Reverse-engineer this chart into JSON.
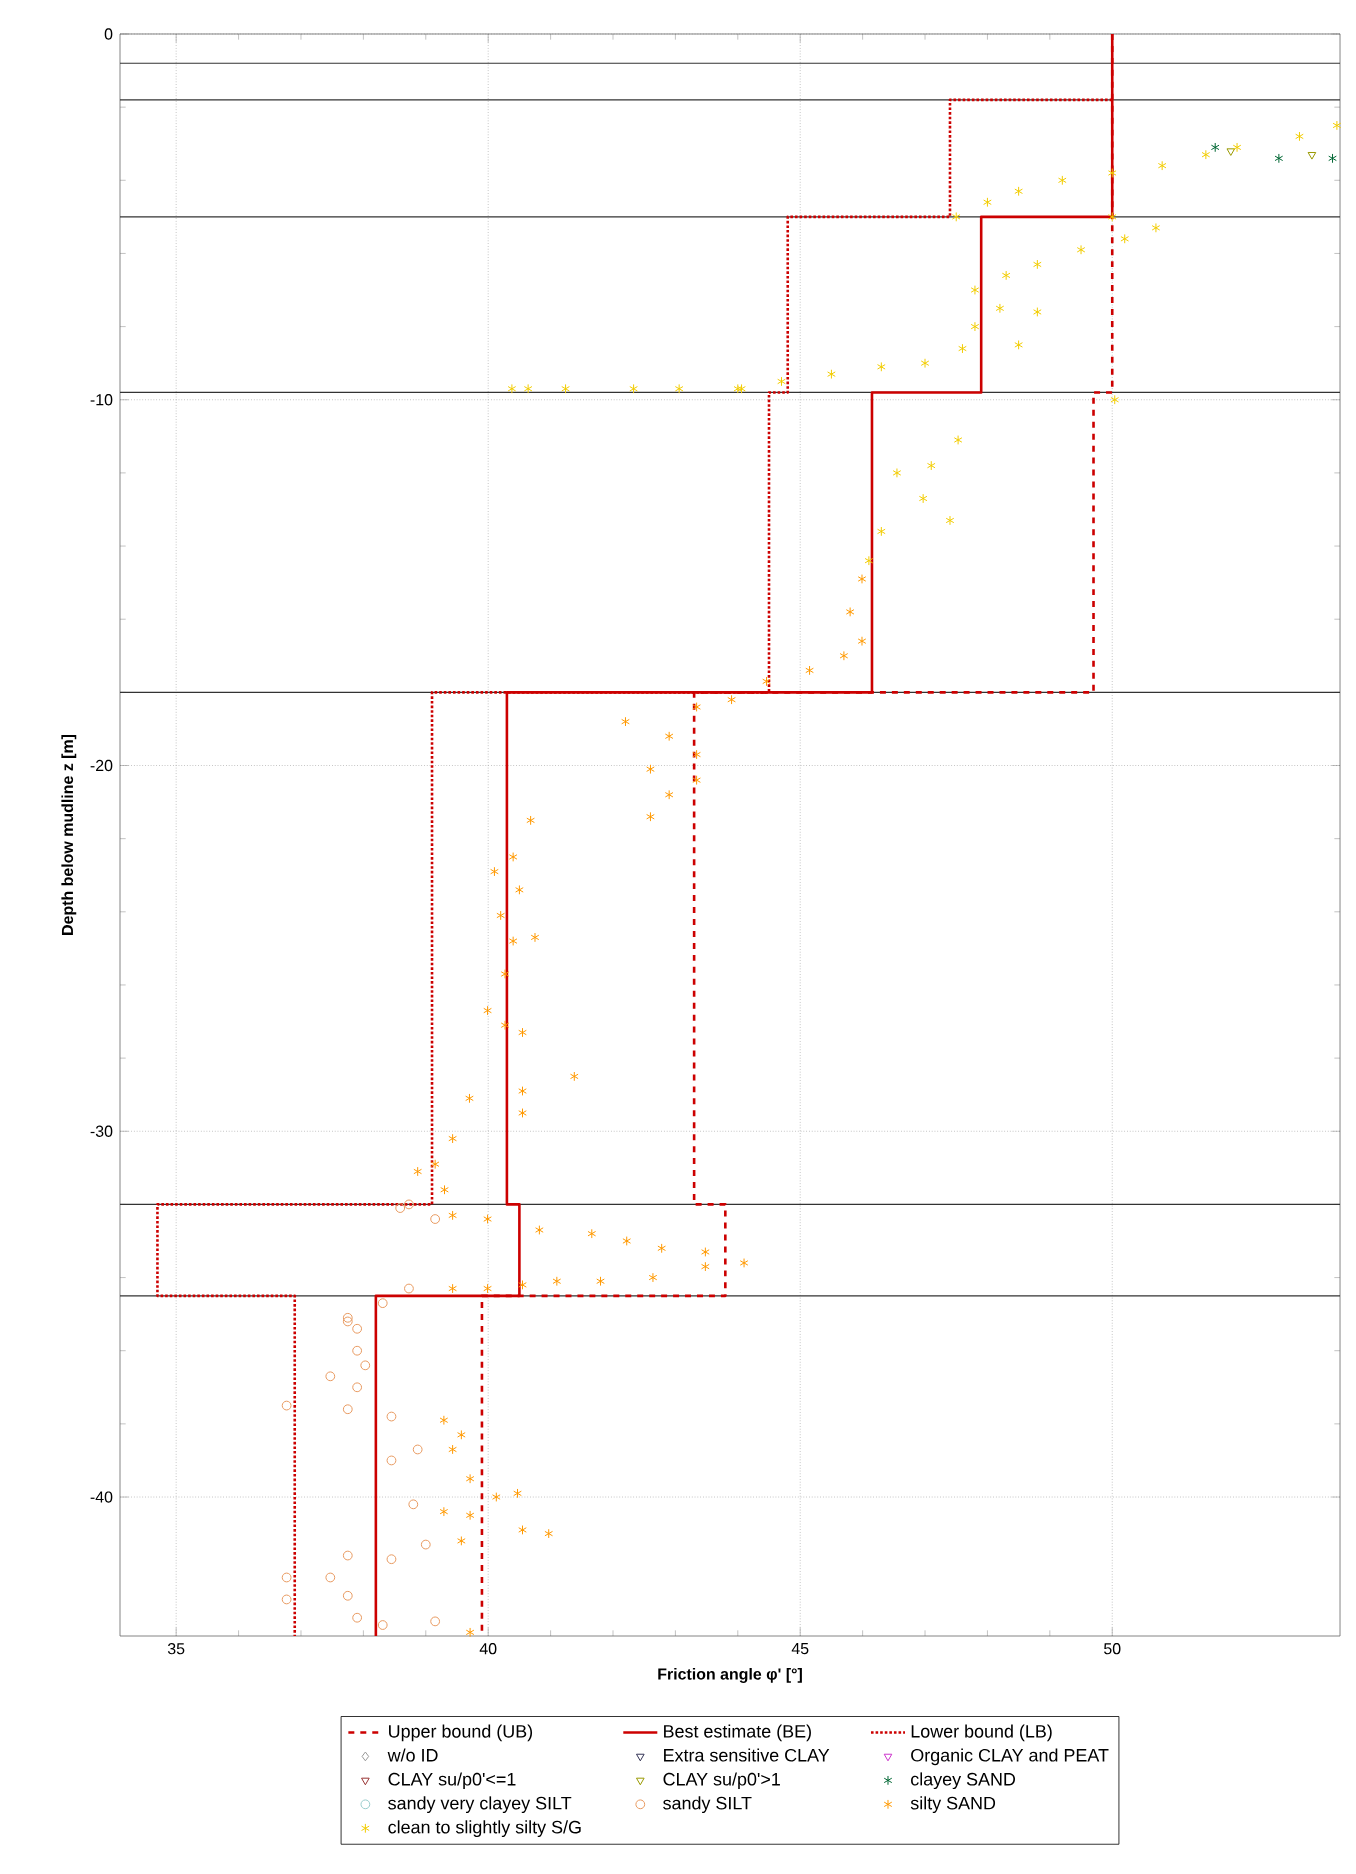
{
  "chart_data": {
    "type": "scatter",
    "xlabel": "**Friction angle φ' [°]**",
    "ylabel": "**Depth below mudline z [m]**",
    "xlim": [
      34.1,
      53.65
    ],
    "ylim": [
      -43.8,
      0
    ],
    "xticks": [
      35,
      40,
      45,
      50
    ],
    "yticks": [
      0,
      -10,
      -20,
      -30,
      -40
    ],
    "grid": true,
    "legend": "bottom",
    "ref_lines": [
      {
        "axis": "y",
        "value": -0.8,
        "color": "#333333"
      },
      {
        "axis": "y",
        "value": -1.8,
        "color": "#333333"
      },
      {
        "axis": "y",
        "value": -5,
        "color": "#333333"
      },
      {
        "axis": "y",
        "value": -9.8,
        "color": "#333333"
      },
      {
        "axis": "y",
        "value": -18,
        "color": "#333333"
      },
      {
        "axis": "y",
        "value": -32,
        "color": "#333333"
      },
      {
        "axis": "y",
        "value": -34.5,
        "color": "#333333"
      }
    ],
    "series": [
      {
        "name": "Upper bound (UB)",
        "type": "line",
        "line_style": "dashed",
        "color": "#cc0000",
        "x": [
          50,
          50,
          49.7,
          49.7,
          43.3,
          43.3,
          43.8,
          43.8,
          39.9,
          39.9
        ],
        "values": [
          0,
          -9.8,
          -9.8,
          -18,
          -18,
          -32,
          -32,
          -34.5,
          -34.5,
          -43.8
        ]
      },
      {
        "name": "Best estimate (BE)",
        "type": "line",
        "line_style": "solid",
        "color": "#cc0000",
        "x": [
          50,
          50,
          47.9,
          47.9,
          46.15,
          46.15,
          40.3,
          40.3,
          40.5,
          40.5,
          38.2,
          38.2
        ],
        "values": [
          0,
          -5,
          -5,
          -9.8,
          -9.8,
          -18,
          -18,
          -32,
          -32,
          -34.5,
          -34.5,
          -43.8
        ]
      },
      {
        "name": "Lower bound (LB)",
        "type": "line",
        "line_style": "dotted",
        "color": "#cc0000",
        "x": [
          50,
          47.4,
          47.4,
          44.8,
          44.8,
          44.5,
          44.5,
          39.1,
          39.1,
          34.7,
          34.7,
          36.9,
          36.9
        ],
        "values": [
          -1.8,
          -1.8,
          -5,
          -5,
          -9.8,
          -9.8,
          -18,
          -18,
          -32,
          -32,
          -34.5,
          -34.5,
          -43.8
        ]
      },
      {
        "name": "w/o ID",
        "marker": "diamond",
        "color": "#999999"
      },
      {
        "name": "Extra sensitive CLAY",
        "marker": "triangle",
        "color": "#333355"
      },
      {
        "name": "Organic CLAY and PEAT",
        "marker": "triangle",
        "color": "#cc33cc"
      },
      {
        "name": "CLAY su/p0'<=1",
        "marker": "triangle",
        "color": "#993333"
      },
      {
        "name": "CLAY su/p0'>1",
        "marker": "triangle",
        "color": "#999900",
        "x": [
          51.9,
          53.2
        ],
        "values": [
          -3.2,
          -3.3
        ]
      },
      {
        "name": "clayey SAND",
        "marker": "cross",
        "color": "#006633",
        "x": [
          51.65,
          52.67,
          53.53
        ],
        "values": [
          -3.1,
          -3.4,
          -3.4
        ]
      },
      {
        "name": "sandy very clayey SILT",
        "marker": "circle",
        "color": "#99cccc"
      },
      {
        "name": "sandy SILT",
        "marker": "circle",
        "color": "#e89a60",
        "x": [
          38.73,
          38.59,
          39.15,
          38.73,
          38.31,
          37.75,
          37.9,
          37.75,
          37.9,
          38.03,
          37.47,
          37.9,
          36.77,
          37.75,
          38.45,
          38.87,
          38.45,
          38.8,
          39.0,
          37.75,
          38.45,
          36.77,
          37.47,
          37.75,
          36.77,
          37.9,
          38.31,
          39.15
        ],
        "values": [
          -32.0,
          -32.1,
          -32.4,
          -34.3,
          -34.7,
          -35.1,
          -35.4,
          -35.2,
          -36.0,
          -36.4,
          -36.7,
          -37.0,
          -37.5,
          -37.6,
          -37.8,
          -38.7,
          -39.0,
          -40.2,
          -41.3,
          -41.6,
          -41.7,
          -42.2,
          -42.2,
          -42.7,
          -42.8,
          -43.3,
          -43.5,
          -43.4
        ]
      },
      {
        "name": "silty SAND",
        "marker": "cross",
        "color": "#ff9900",
        "x": [
          45.99,
          45.8,
          45.99,
          45.7,
          45.15,
          44.46,
          43.9,
          43.34,
          42.2,
          42.9,
          43.34,
          42.6,
          43.34,
          42.9,
          42.6,
          40.68,
          40.4,
          40.1,
          40.5,
          40.2,
          40.75,
          40.4,
          40.27,
          39.99,
          40.27,
          40.55,
          41.38,
          40.55,
          39.7,
          40.55,
          39.43,
          39.15,
          38.87,
          39.3,
          39.43,
          39.99,
          40.82,
          41.66,
          42.22,
          42.78,
          43.48,
          44.1,
          43.48,
          42.64,
          41.8,
          41.1,
          40.55,
          39.99,
          39.43,
          39.29,
          39.57,
          39.43,
          39.71,
          40.13,
          40.47,
          39.29,
          39.71,
          40.55,
          40.97,
          39.57,
          39.71
        ],
        "values": [
          -14.9,
          -15.8,
          -16.6,
          -17.0,
          -17.4,
          -17.7,
          -18.2,
          -18.4,
          -18.8,
          -19.2,
          -19.7,
          -20.1,
          -20.4,
          -20.8,
          -21.4,
          -21.5,
          -22.5,
          -22.9,
          -23.4,
          -24.1,
          -24.7,
          -24.8,
          -25.7,
          -26.7,
          -27.1,
          -27.3,
          -28.5,
          -28.9,
          -29.1,
          -29.5,
          -30.2,
          -30.9,
          -31.1,
          -31.6,
          -32.3,
          -32.4,
          -32.7,
          -32.8,
          -33.0,
          -33.2,
          -33.3,
          -33.6,
          -33.7,
          -34.0,
          -34.1,
          -34.1,
          -34.2,
          -34.3,
          -34.3,
          -37.9,
          -38.3,
          -38.7,
          -39.5,
          -40.0,
          -39.9,
          -40.4,
          -40.5,
          -40.9,
          -41.0,
          -41.2,
          -43.7
        ]
      },
      {
        "name": "clean to slightly silty S/G",
        "marker": "cross",
        "color": "#f2cc00",
        "x": [
          53.6,
          53.0,
          52.0,
          51.5,
          50.8,
          50.0,
          49.2,
          48.5,
          48.0,
          47.5,
          50.0,
          50.7,
          50.2,
          49.5,
          48.8,
          48.3,
          47.8,
          48.2,
          48.8,
          47.8,
          48.5,
          47.6,
          47.0,
          46.3,
          45.5,
          44.7,
          44.0,
          44.06,
          43.06,
          42.33,
          41.24,
          40.64,
          40.38,
          50.04,
          47.53,
          47.1,
          46.55,
          46.97,
          47.4,
          46.3,
          46.1
        ],
        "values": [
          -2.5,
          -2.8,
          -3.1,
          -3.3,
          -3.6,
          -3.8,
          -4.0,
          -4.3,
          -4.6,
          -5.0,
          -5.0,
          -5.3,
          -5.6,
          -5.9,
          -6.3,
          -6.6,
          -7.0,
          -7.5,
          -7.6,
          -8.0,
          -8.5,
          -8.6,
          -9.0,
          -9.1,
          -9.3,
          -9.5,
          -9.7,
          -9.7,
          -9.7,
          -9.7,
          -9.7,
          -9.7,
          -9.7,
          -10.0,
          -11.1,
          -11.8,
          -12.0,
          -12.7,
          -13.3,
          -13.6,
          -14.4
        ]
      }
    ]
  }
}
